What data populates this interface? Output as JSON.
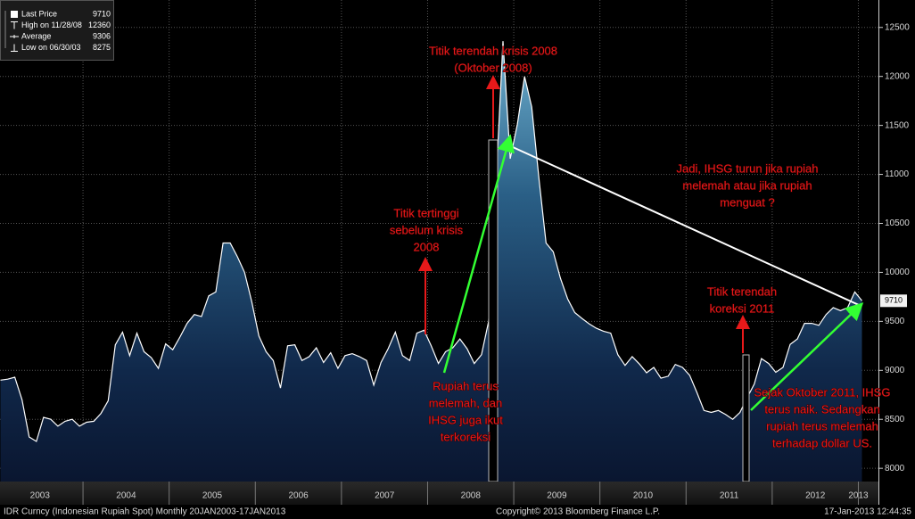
{
  "chart_data": {
    "type": "area",
    "categories": [
      null,
      null,
      null,
      null,
      null,
      null,
      "2003",
      null,
      null,
      null,
      null,
      null,
      null,
      null,
      null,
      null,
      null,
      null,
      "2004",
      null,
      null,
      null,
      null,
      null,
      null,
      null,
      null,
      null,
      null,
      null,
      "2005",
      null,
      null,
      null,
      null,
      null,
      null,
      null,
      null,
      null,
      null,
      null,
      "2006",
      null,
      null,
      null,
      null,
      null,
      null,
      null,
      null,
      null,
      null,
      null,
      "2007",
      null,
      null,
      null,
      null,
      null,
      null,
      null,
      null,
      null,
      null,
      null,
      "2008",
      null,
      null,
      null,
      null,
      null,
      null,
      null,
      null,
      null,
      null,
      null,
      "2009",
      null,
      null,
      null,
      null,
      null,
      null,
      null,
      null,
      null,
      null,
      null,
      "2010",
      null,
      null,
      null,
      null,
      null,
      null,
      null,
      null,
      null,
      null,
      null,
      "2011",
      null,
      null,
      null,
      null,
      null,
      null,
      null,
      null,
      null,
      null,
      null,
      "2012",
      null,
      null,
      null,
      null,
      null,
      "2013"
    ],
    "series": [
      {
        "name": "Last Price",
        "color": "#ffffff",
        "values": [
          8900,
          8910,
          8930,
          8700,
          8320,
          8275,
          8520,
          8500,
          8430,
          8480,
          8500,
          8430,
          8470,
          8480,
          8560,
          8690,
          9260,
          9390,
          9150,
          9380,
          9190,
          9130,
          9020,
          9270,
          9210,
          9340,
          9480,
          9570,
          9550,
          9760,
          9800,
          10300,
          10300,
          10160,
          10000,
          9700,
          9350,
          9190,
          9100,
          8820,
          9250,
          9260,
          9100,
          9140,
          9230,
          9080,
          9180,
          9020,
          9150,
          9170,
          9140,
          9100,
          8850,
          9080,
          9220,
          9390,
          9150,
          9100,
          9380,
          9410,
          9250,
          9070,
          9190,
          9230,
          9320,
          9220,
          9070,
          9160,
          9500,
          10870,
          12360,
          11160,
          11510,
          12000,
          11690,
          10960,
          10300,
          10210,
          9940,
          9730,
          9590,
          9530,
          9475,
          9430,
          9400,
          9380,
          9160,
          9050,
          9140,
          9065,
          8975,
          9030,
          8920,
          8940,
          9060,
          9030,
          8950,
          8775,
          8590,
          8570,
          8590,
          8550,
          8500,
          8570,
          8720,
          8860,
          9120,
          9070,
          8980,
          9030,
          9265,
          9320,
          9480,
          9480,
          9460,
          9570,
          9640,
          9610,
          9640,
          9800,
          9710
        ]
      }
    ],
    "ylim": [
      7865,
      12780
    ],
    "yticks": [
      8000,
      8500,
      9000,
      9500,
      10000,
      10500,
      11000,
      11500,
      12000,
      12500
    ],
    "grid": true,
    "legend": [
      {
        "label": "Last Price",
        "value": 9710
      },
      {
        "label": "High on 11/28/08",
        "value": 12360
      },
      {
        "label": "Average",
        "value": 9306
      },
      {
        "label": "Low on 06/30/03",
        "value": 8275
      }
    ],
    "annotations": [
      {
        "lines": [
          "Titik terendah krisis 2008",
          "(Oktober 2008)"
        ]
      },
      {
        "lines": [
          "Titik tertinggi",
          "sebelum krisis",
          "2008"
        ]
      },
      {
        "lines": [
          "Jadi, IHSG turun jika rupiah",
          "melemah atau jika rupiah",
          "menguat ?"
        ]
      },
      {
        "lines": [
          "Titik terendah",
          "koreksi 2011"
        ]
      },
      {
        "lines": [
          "Rupiah terus",
          "melemah, dan",
          "IHSG juga ikut",
          "terkoreksi"
        ]
      },
      {
        "lines": [
          "Sejak Oktober 2011, IHSG",
          "terus naik. Sedangkan",
          "rupiah terus melemah",
          "terhadap dollar US."
        ]
      }
    ],
    "footer": {
      "left": "IDR Curncy (Indonesian Rupiah Spot) Monthly 20JAN2003-17JAN2013",
      "center": "Copyright© 2013 Bloomberg Finance L.P.",
      "right": "17-Jan-2013 12:44:35"
    }
  }
}
